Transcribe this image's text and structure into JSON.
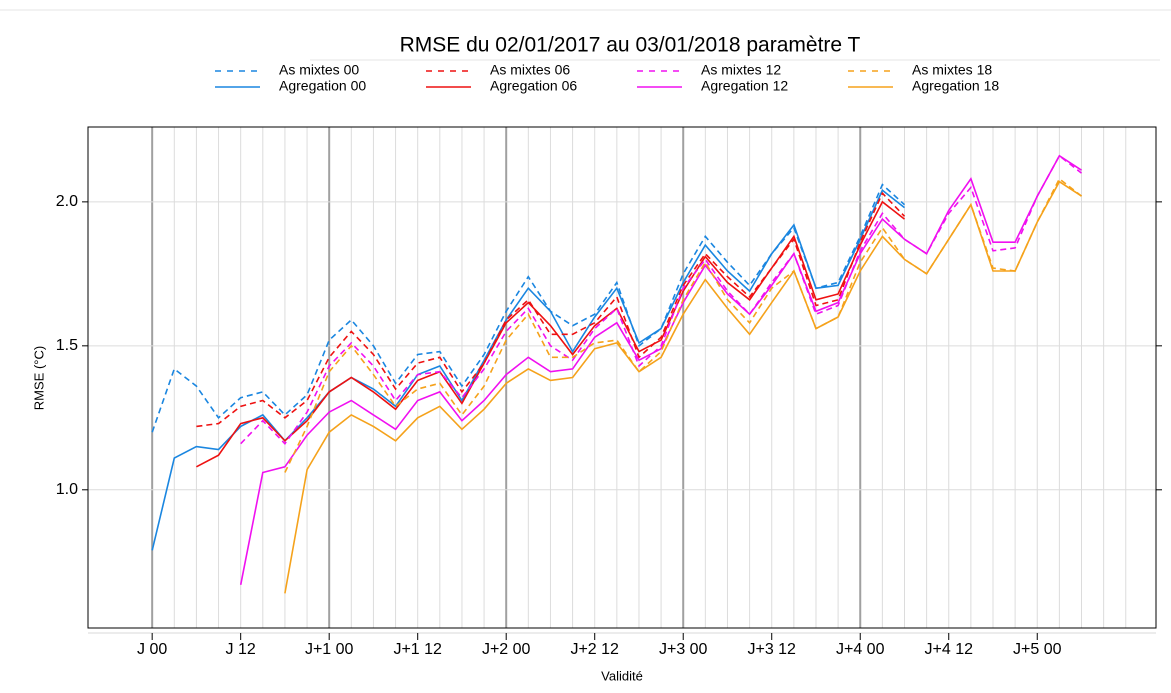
{
  "chart_data": {
    "type": "line",
    "title": "RMSE du 02/01/2017 au 03/01/2018 paramètre T",
    "x_label": "Validité",
    "y_label": "RMSE (°C)",
    "xlim": [
      -8.7,
      136.1
    ],
    "ylim": [
      0.52,
      2.26
    ],
    "yticks": [
      {
        "value": 1,
        "label": "1.0"
      },
      {
        "value": 1.5,
        "label": "1.5"
      },
      {
        "value": 2,
        "label": "2.0"
      }
    ],
    "xticks": [
      {
        "value": 0,
        "label": "J 00"
      },
      {
        "value": 12,
        "label": "J 12"
      },
      {
        "value": 24,
        "label": "J+1 00"
      },
      {
        "value": 36,
        "label": "J+1 12"
      },
      {
        "value": 48,
        "label": "J+2 00"
      },
      {
        "value": 60,
        "label": "J+2 12"
      },
      {
        "value": 72,
        "label": "J+3 00"
      },
      {
        "value": 84,
        "label": "J+3 12"
      },
      {
        "value": 96,
        "label": "J+4 00"
      },
      {
        "value": 108,
        "label": "J+4 12"
      },
      {
        "value": 120,
        "label": "J+5 00"
      }
    ],
    "xgrid_major": [
      0,
      24,
      48,
      72,
      96
    ],
    "xgrid_minor": [
      3,
      6,
      9,
      12,
      15,
      18,
      21,
      27,
      30,
      33,
      36,
      39,
      42,
      45,
      51,
      54,
      57,
      60,
      63,
      66,
      69,
      75,
      78,
      81,
      84,
      87,
      90,
      93,
      99,
      102,
      105,
      108,
      111,
      114,
      117,
      120,
      123,
      126,
      129,
      132
    ],
    "grid": true,
    "legend": "top",
    "series": [
      {
        "name": "As mixtes 00",
        "color": "#1a86e0",
        "dashed": true,
        "x": [
          0,
          3,
          6,
          9,
          12,
          15,
          18,
          21,
          24,
          27,
          30,
          33,
          36,
          39,
          42,
          45,
          48,
          51,
          54,
          57,
          60,
          63,
          66,
          69,
          72,
          75,
          78,
          81,
          84,
          87,
          90,
          93,
          96,
          99,
          102
        ],
        "values": [
          1.2,
          1.42,
          1.36,
          1.25,
          1.32,
          1.34,
          1.26,
          1.33,
          1.52,
          1.59,
          1.5,
          1.37,
          1.47,
          1.48,
          1.36,
          1.47,
          1.62,
          1.74,
          1.62,
          1.57,
          1.61,
          1.72,
          1.5,
          1.56,
          1.75,
          1.88,
          1.79,
          1.71,
          1.82,
          1.91,
          1.7,
          1.72,
          1.88,
          2.06,
          1.99
        ]
      },
      {
        "name": "Agregation 00",
        "color": "#1a86e0",
        "dashed": false,
        "x": [
          0,
          3,
          6,
          9,
          12,
          15,
          18,
          21,
          24,
          27,
          30,
          33,
          36,
          39,
          42,
          45,
          48,
          51,
          54,
          57,
          60,
          63,
          66,
          69,
          72,
          75,
          78,
          81,
          84,
          87,
          90,
          93,
          96,
          99,
          102
        ],
        "values": [
          0.79,
          1.11,
          1.15,
          1.14,
          1.22,
          1.26,
          1.17,
          1.25,
          1.34,
          1.39,
          1.35,
          1.29,
          1.4,
          1.43,
          1.31,
          1.45,
          1.59,
          1.7,
          1.62,
          1.48,
          1.6,
          1.7,
          1.51,
          1.56,
          1.72,
          1.85,
          1.76,
          1.69,
          1.82,
          1.92,
          1.7,
          1.71,
          1.87,
          2.04,
          1.98
        ]
      },
      {
        "name": "As mixtes 06",
        "color": "#ee1111",
        "dashed": true,
        "x": [
          6,
          9,
          12,
          15,
          18,
          21,
          24,
          27,
          30,
          33,
          36,
          39,
          42,
          45,
          48,
          51,
          54,
          57,
          60,
          63,
          66,
          69,
          72,
          75,
          78,
          81,
          84,
          87,
          90,
          93,
          96,
          99,
          102
        ],
        "values": [
          1.22,
          1.23,
          1.29,
          1.31,
          1.25,
          1.31,
          1.46,
          1.55,
          1.47,
          1.35,
          1.44,
          1.46,
          1.34,
          1.44,
          1.59,
          1.66,
          1.54,
          1.54,
          1.58,
          1.67,
          1.46,
          1.53,
          1.71,
          1.82,
          1.74,
          1.67,
          1.77,
          1.87,
          1.64,
          1.66,
          1.86,
          2.03,
          1.95
        ]
      },
      {
        "name": "Agregation 06",
        "color": "#ee1111",
        "dashed": false,
        "x": [
          6,
          9,
          12,
          15,
          18,
          21,
          24,
          27,
          30,
          33,
          36,
          39,
          42,
          45,
          48,
          51,
          54,
          57,
          60,
          63,
          66,
          69,
          72,
          75,
          78,
          81,
          84,
          87,
          90,
          93,
          96,
          99,
          102
        ],
        "values": [
          1.08,
          1.12,
          1.23,
          1.25,
          1.17,
          1.24,
          1.34,
          1.39,
          1.34,
          1.28,
          1.38,
          1.41,
          1.3,
          1.44,
          1.58,
          1.65,
          1.57,
          1.47,
          1.57,
          1.63,
          1.48,
          1.52,
          1.69,
          1.81,
          1.72,
          1.66,
          1.77,
          1.88,
          1.66,
          1.68,
          1.85,
          2.0,
          1.94
        ]
      },
      {
        "name": "As mixtes 12",
        "color": "#f010f0",
        "dashed": true,
        "x": [
          12,
          15,
          18,
          21,
          24,
          27,
          30,
          33,
          36,
          39,
          42,
          45,
          48,
          51,
          54,
          57,
          60,
          63,
          66,
          69,
          72,
          75,
          78,
          81,
          84,
          87,
          90,
          93,
          96,
          99,
          102,
          105,
          108,
          111,
          114,
          117,
          120,
          123,
          126
        ],
        "values": [
          1.16,
          1.24,
          1.16,
          1.27,
          1.43,
          1.51,
          1.43,
          1.31,
          1.4,
          1.41,
          1.32,
          1.42,
          1.55,
          1.63,
          1.5,
          1.45,
          1.56,
          1.63,
          1.43,
          1.5,
          1.7,
          1.8,
          1.69,
          1.61,
          1.72,
          1.82,
          1.61,
          1.64,
          1.83,
          1.96,
          1.87,
          1.82,
          1.96,
          2.05,
          1.83,
          1.84,
          2.02,
          2.16,
          2.1
        ]
      },
      {
        "name": "Agregation 12",
        "color": "#f010f0",
        "dashed": false,
        "x": [
          12,
          15,
          18,
          21,
          24,
          27,
          30,
          33,
          36,
          39,
          42,
          45,
          48,
          51,
          54,
          57,
          60,
          63,
          66,
          69,
          72,
          75,
          78,
          81,
          84,
          87,
          90,
          93,
          96,
          99,
          102,
          105,
          108,
          111,
          114,
          117,
          120,
          123,
          126
        ],
        "values": [
          0.67,
          1.06,
          1.08,
          1.19,
          1.27,
          1.31,
          1.26,
          1.21,
          1.31,
          1.34,
          1.24,
          1.31,
          1.4,
          1.46,
          1.41,
          1.42,
          1.53,
          1.58,
          1.45,
          1.49,
          1.65,
          1.78,
          1.68,
          1.61,
          1.71,
          1.82,
          1.62,
          1.65,
          1.82,
          1.94,
          1.87,
          1.82,
          1.97,
          2.08,
          1.86,
          1.86,
          2.02,
          2.16,
          2.11
        ]
      },
      {
        "name": "As mixtes 18",
        "color": "#f5a21b",
        "dashed": true,
        "x": [
          18,
          21,
          24,
          27,
          30,
          33,
          36,
          39,
          42,
          45,
          48,
          51,
          54,
          57,
          60,
          63,
          66,
          69,
          72,
          75,
          78,
          81,
          84,
          87,
          90,
          93,
          96,
          99,
          102,
          105,
          108,
          111,
          114,
          117,
          120,
          123,
          126
        ],
        "values": [
          1.06,
          1.22,
          1.41,
          1.5,
          1.4,
          1.29,
          1.35,
          1.37,
          1.26,
          1.36,
          1.52,
          1.61,
          1.46,
          1.46,
          1.51,
          1.52,
          1.41,
          1.48,
          1.66,
          1.79,
          1.66,
          1.58,
          1.7,
          1.76,
          1.56,
          1.6,
          1.79,
          1.91,
          1.8,
          1.75,
          1.87,
          1.99,
          1.77,
          1.76,
          1.93,
          2.08,
          2.02
        ]
      },
      {
        "name": "Agregation 18",
        "color": "#f5a21b",
        "dashed": false,
        "x": [
          18,
          21,
          24,
          27,
          30,
          33,
          36,
          39,
          42,
          45,
          48,
          51,
          54,
          57,
          60,
          63,
          66,
          69,
          72,
          75,
          78,
          81,
          84,
          87,
          90,
          93,
          96,
          99,
          102,
          105,
          108,
          111,
          114,
          117,
          120,
          123,
          126
        ],
        "values": [
          0.64,
          1.07,
          1.2,
          1.26,
          1.22,
          1.17,
          1.25,
          1.29,
          1.21,
          1.28,
          1.37,
          1.42,
          1.38,
          1.39,
          1.49,
          1.51,
          1.41,
          1.46,
          1.61,
          1.73,
          1.63,
          1.54,
          1.65,
          1.76,
          1.56,
          1.6,
          1.76,
          1.88,
          1.8,
          1.75,
          1.87,
          1.99,
          1.76,
          1.76,
          1.93,
          2.07,
          2.02
        ]
      }
    ]
  }
}
